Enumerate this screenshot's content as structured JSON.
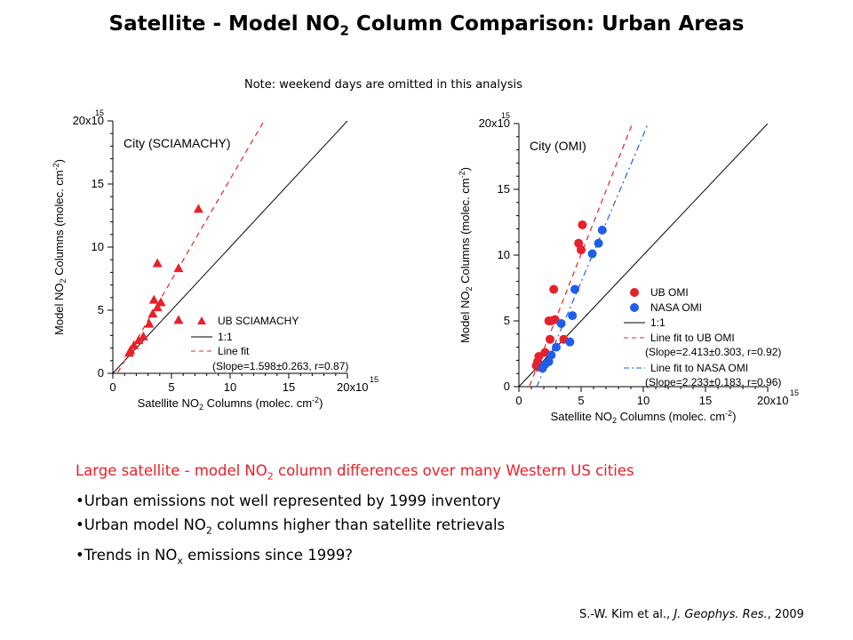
{
  "header": {
    "title_pre": "Satellite - Model NO",
    "title_sub": "2",
    "title_post": " Column Comparison: Urban Areas",
    "note": "Note: weekend days are omitted in this analysis"
  },
  "chart_data": [
    {
      "type": "scatter",
      "panel_label": "City (SCIAMACHY)",
      "xlabel": "Satellite NO₂ Columns (molec. cm⁻²)",
      "ylabel": "Model NO₂ Columns (molec. cm⁻²)",
      "xlim": [
        0,
        2e+16
      ],
      "ylim": [
        0,
        2e+16
      ],
      "x_ticks": [
        "0",
        "5",
        "10",
        "15",
        "20x10"
      ],
      "y_ticks": [
        "0",
        "5",
        "10",
        "15",
        "20x10"
      ],
      "exponent": "15",
      "colors": {
        "points": "#e8202a",
        "fit": "#e8202a",
        "one_to_one": "#000000"
      },
      "series": [
        {
          "name": "UB SCIAMACHY",
          "marker": "triangle",
          "x": [
            1400000000000000.0,
            1500000000000000.0,
            1800000000000000.0,
            2200000000000000.0,
            2600000000000000.0,
            3100000000000000.0,
            3400000000000000.0,
            3500000000000000.0,
            3800000000000000.0,
            4100000000000000.0,
            3800000000000000.0,
            5600000000000000.0,
            5600000000000000.0,
            7300000000000000.0
          ],
          "y": [
            1600000000000000.0,
            1800000000000000.0,
            2200000000000000.0,
            2600000000000000.0,
            2900000000000000.0,
            3900000000000000.0,
            4700000000000000.0,
            5800000000000000.0,
            5200000000000000.0,
            5600000000000000.0,
            8700000000000000.0,
            8300000000000000.0,
            4200000000000000.0,
            1.3e+16
          ]
        }
      ],
      "legend": [
        "UB SCIAMACHY",
        "1:1",
        "Line fit",
        "(Slope=1.598±0.263, r=0.87)"
      ],
      "fits": [
        {
          "slope": 1.598,
          "intercept": -600000000000000.0
        }
      ]
    },
    {
      "type": "scatter",
      "panel_label": "City (OMI)",
      "xlabel": "Satellite NO₂ Columns (molec. cm⁻²)",
      "ylabel": "Model NO₂ Columns (molec. cm⁻²)",
      "xlim": [
        0,
        2e+16
      ],
      "ylim": [
        0,
        2e+16
      ],
      "x_ticks": [
        "0",
        "5",
        "10",
        "15",
        "20x10"
      ],
      "y_ticks": [
        "0",
        "5",
        "10",
        "15",
        "20x10"
      ],
      "exponent": "15",
      "colors": {
        "ub": "#e8202a",
        "nasa": "#1f5ee8",
        "one_to_one": "#000000"
      },
      "series": [
        {
          "name": "UB OMI",
          "marker": "circle",
          "x": [
            1400000000000000.0,
            1500000000000000.0,
            1600000000000000.0,
            2100000000000000.0,
            2500000000000000.0,
            2600000000000000.0,
            2900000000000000.0,
            2800000000000000.0,
            3600000000000000.0,
            4800000000000000.0,
            5000000000000000.0,
            5100000000000000.0,
            2400000000000000.0,
            1500000000000000.0
          ],
          "y": [
            1600000000000000.0,
            1900000000000000.0,
            2300000000000000.0,
            2600000000000000.0,
            3600000000000000.0,
            5000000000000000.0,
            5100000000000000.0,
            7400000000000000.0,
            3600000000000000.0,
            1.09e+16,
            1.04e+16,
            1.23e+16,
            5000000000000000.0,
            1500000000000000.0
          ]
        },
        {
          "name": "NASA OMI",
          "marker": "circle",
          "x": [
            2100000000000000.0,
            2400000000000000.0,
            2600000000000000.0,
            3000000000000000.0,
            3400000000000000.0,
            4100000000000000.0,
            4300000000000000.0,
            4500000000000000.0,
            5900000000000000.0,
            6400000000000000.0,
            6700000000000000.0,
            1900000000000000.0
          ],
          "y": [
            1700000000000000.0,
            1900000000000000.0,
            2400000000000000.0,
            3000000000000000.0,
            4800000000000000.0,
            3400000000000000.0,
            5400000000000000.0,
            7400000000000000.0,
            1.01e+16,
            1.09e+16,
            1.19e+16,
            1400000000000000.0
          ]
        }
      ],
      "legend": [
        "UB OMI",
        "NASA OMI",
        "1:1",
        "Line fit to UB OMI",
        "(Slope=2.413±0.303, r=0.92)",
        "Line fit to NASA OMI",
        "(Slope=2.233±0.183, r=0.96)"
      ],
      "fits": [
        {
          "slope": 2.413,
          "intercept": -2000000000000000.0
        },
        {
          "slope": 2.233,
          "intercept": -3200000000000000.0
        }
      ]
    }
  ],
  "bullets": {
    "headline_pre": "Large satellite - model NO",
    "headline_sub": "2",
    "headline_post": " column differences over many Western US cities",
    "b1": "•Urban emissions not well represented by 1999 inventory",
    "b2_pre": "•Urban model NO",
    "b2_sub": "2",
    "b2_post": " columns higher than satellite retrievals",
    "b3_pre": "•Trends in NO",
    "b3_sub": "x",
    "b3_post": " emissions since 1999?"
  },
  "citation": {
    "authors": "S.-W. Kim et al., ",
    "journal": "J. Geophys. Res.",
    "year": ", 2009"
  }
}
